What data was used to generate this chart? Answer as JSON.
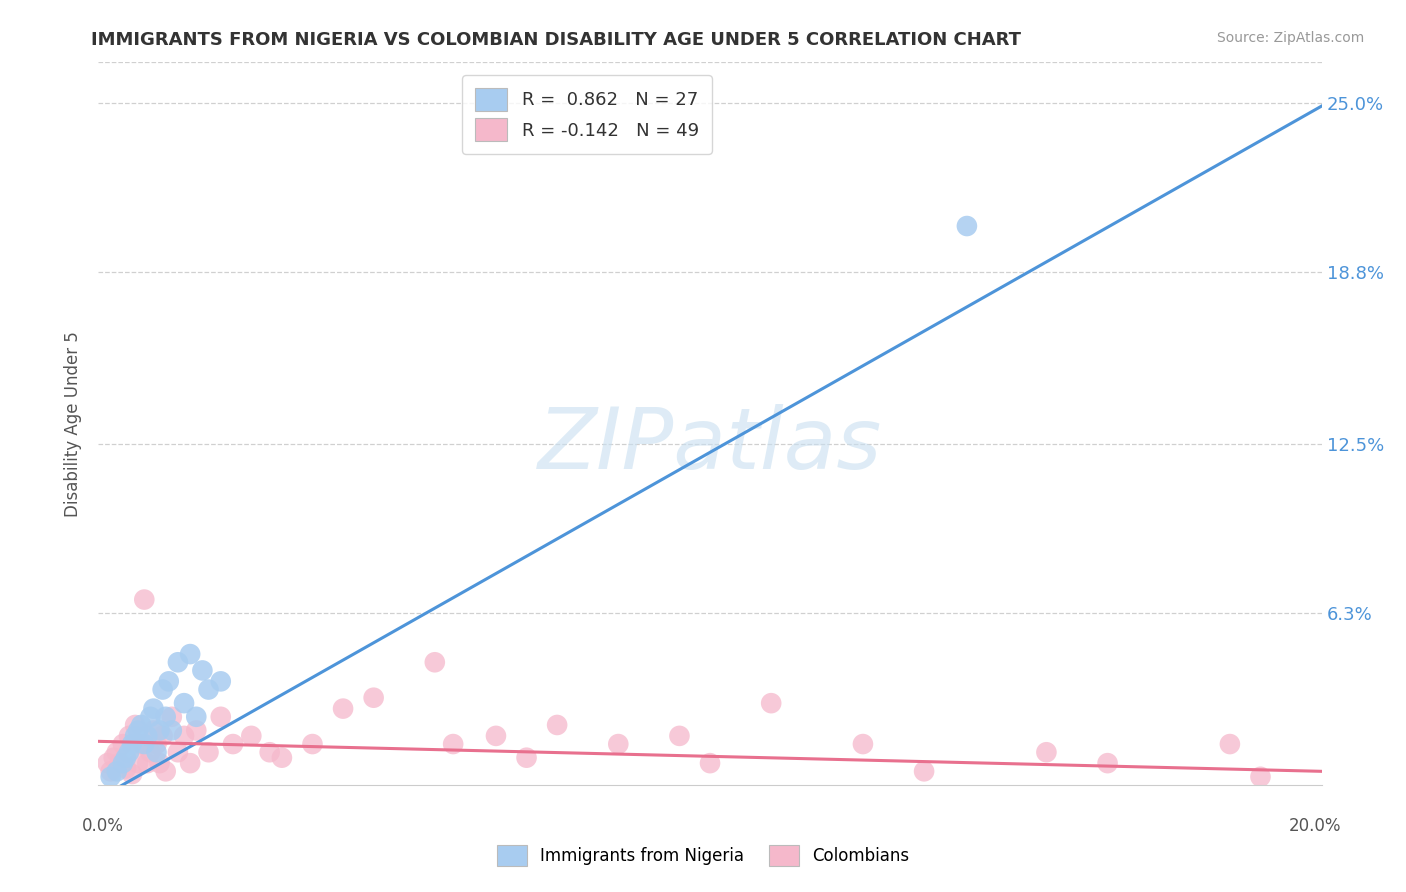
{
  "title": "IMMIGRANTS FROM NIGERIA VS COLOMBIAN DISABILITY AGE UNDER 5 CORRELATION CHART",
  "source": "Source: ZipAtlas.com",
  "ylabel": "Disability Age Under 5",
  "xlim": [
    0.0,
    20.0
  ],
  "ylim": [
    0.0,
    26.5
  ],
  "ytick_labels": [
    "6.3%",
    "12.5%",
    "18.8%",
    "25.0%"
  ],
  "ytick_values": [
    6.3,
    12.5,
    18.8,
    25.0
  ],
  "grid_values": [
    6.3,
    12.5,
    18.8,
    25.0
  ],
  "legend_nigeria_r": "0.862",
  "legend_nigeria_n": "27",
  "legend_colombia_r": "-0.142",
  "legend_colombia_n": "49",
  "nigeria_color": "#a8ccf0",
  "colombia_color": "#f5b8cb",
  "nigeria_line_color": "#4d94d9",
  "colombia_line_color": "#e8708e",
  "watermark_text": "ZIPatlas",
  "watermark_color": "#c8dff0",
  "background_color": "#ffffff",
  "grid_color": "#d0d0d0",
  "nigeria_line_slope": 1.27,
  "nigeria_line_intercept": -0.5,
  "colombia_line_slope": -0.055,
  "colombia_line_intercept": 1.6,
  "nigeria_points_x": [
    0.2,
    0.3,
    0.4,
    0.45,
    0.5,
    0.55,
    0.6,
    0.65,
    0.7,
    0.75,
    0.8,
    0.85,
    0.9,
    0.95,
    1.0,
    1.05,
    1.1,
    1.15,
    1.2,
    1.3,
    1.4,
    1.5,
    1.6,
    1.7,
    1.8,
    2.0,
    14.2
  ],
  "nigeria_points_y": [
    0.3,
    0.5,
    0.8,
    1.0,
    1.2,
    1.5,
    1.8,
    2.0,
    2.2,
    1.5,
    1.8,
    2.5,
    2.8,
    1.2,
    2.0,
    3.5,
    2.5,
    3.8,
    2.0,
    4.5,
    3.0,
    4.8,
    2.5,
    4.2,
    3.5,
    3.8,
    20.5
  ],
  "colombia_points_x": [
    0.15,
    0.2,
    0.25,
    0.3,
    0.35,
    0.4,
    0.45,
    0.5,
    0.55,
    0.6,
    0.65,
    0.7,
    0.75,
    0.8,
    0.85,
    0.9,
    0.95,
    1.0,
    1.05,
    1.1,
    1.2,
    1.3,
    1.4,
    1.5,
    1.6,
    1.8,
    2.0,
    2.2,
    2.5,
    2.8,
    3.0,
    3.5,
    4.0,
    4.5,
    5.5,
    5.8,
    6.5,
    7.0,
    7.5,
    8.5,
    9.5,
    10.0,
    11.0,
    12.5,
    13.5,
    15.5,
    16.5,
    18.5,
    19.0
  ],
  "colombia_points_y": [
    0.8,
    0.5,
    1.0,
    1.2,
    0.8,
    1.5,
    0.6,
    1.8,
    0.4,
    2.2,
    0.8,
    1.5,
    6.8,
    0.8,
    1.2,
    2.0,
    1.5,
    0.8,
    1.8,
    0.5,
    2.5,
    1.2,
    1.8,
    0.8,
    2.0,
    1.2,
    2.5,
    1.5,
    1.8,
    1.2,
    1.0,
    1.5,
    2.8,
    3.2,
    4.5,
    1.5,
    1.8,
    1.0,
    2.2,
    1.5,
    1.8,
    0.8,
    3.0,
    1.5,
    0.5,
    1.2,
    0.8,
    1.5,
    0.3
  ]
}
